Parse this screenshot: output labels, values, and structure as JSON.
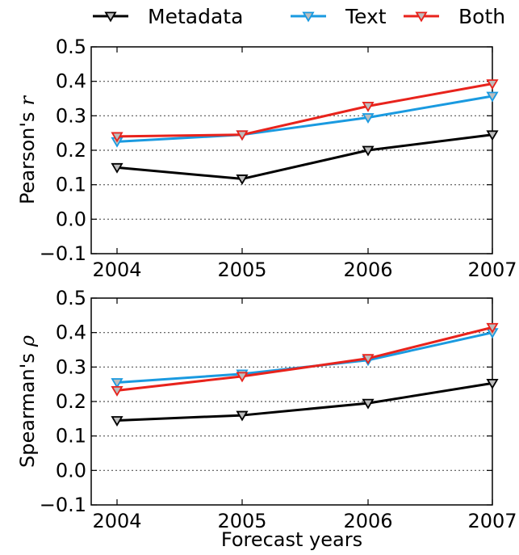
{
  "legend": [
    {
      "name": "Metadata",
      "color": "#000000"
    },
    {
      "name": "Text",
      "color": "#1a9ae0"
    },
    {
      "name": "Both",
      "color": "#e8231c"
    }
  ],
  "chart_data": [
    {
      "type": "line",
      "title": "",
      "xlabel": "",
      "ylabel": "Pearson's r",
      "ylabel_prefix": "Pearson's",
      "ylabel_symbol": "r",
      "x": [
        "2004",
        "2005",
        "2006",
        "2007"
      ],
      "ylim": [
        -0.1,
        0.5
      ],
      "yticks": [
        "−0.1",
        "0.0",
        "0.1",
        "0.2",
        "0.3",
        "0.4",
        "0.5"
      ],
      "grid": "horizontal dotted",
      "series": [
        {
          "name": "Metadata",
          "color": "#000000",
          "values": [
            0.15,
            0.117,
            0.2,
            0.245
          ]
        },
        {
          "name": "Text",
          "color": "#1a9ae0",
          "values": [
            0.225,
            0.245,
            0.295,
            0.357
          ]
        },
        {
          "name": "Both",
          "color": "#e8231c",
          "values": [
            0.24,
            0.245,
            0.328,
            0.393
          ]
        }
      ]
    },
    {
      "type": "line",
      "title": "",
      "xlabel": "Forecast years",
      "ylabel": "Spearman's ρ",
      "ylabel_prefix": "Spearman's",
      "ylabel_symbol": "ρ",
      "x": [
        "2004",
        "2005",
        "2006",
        "2007"
      ],
      "ylim": [
        -0.1,
        0.5
      ],
      "yticks": [
        "−0.1",
        "0.0",
        "0.1",
        "0.2",
        "0.3",
        "0.4",
        "0.5"
      ],
      "grid": "horizontal dotted",
      "series": [
        {
          "name": "Metadata",
          "color": "#000000",
          "values": [
            0.145,
            0.16,
            0.195,
            0.253
          ]
        },
        {
          "name": "Text",
          "color": "#1a9ae0",
          "values": [
            0.255,
            0.28,
            0.32,
            0.4
          ]
        },
        {
          "name": "Both",
          "color": "#e8231c",
          "values": [
            0.232,
            0.273,
            0.325,
            0.415
          ]
        }
      ]
    }
  ]
}
